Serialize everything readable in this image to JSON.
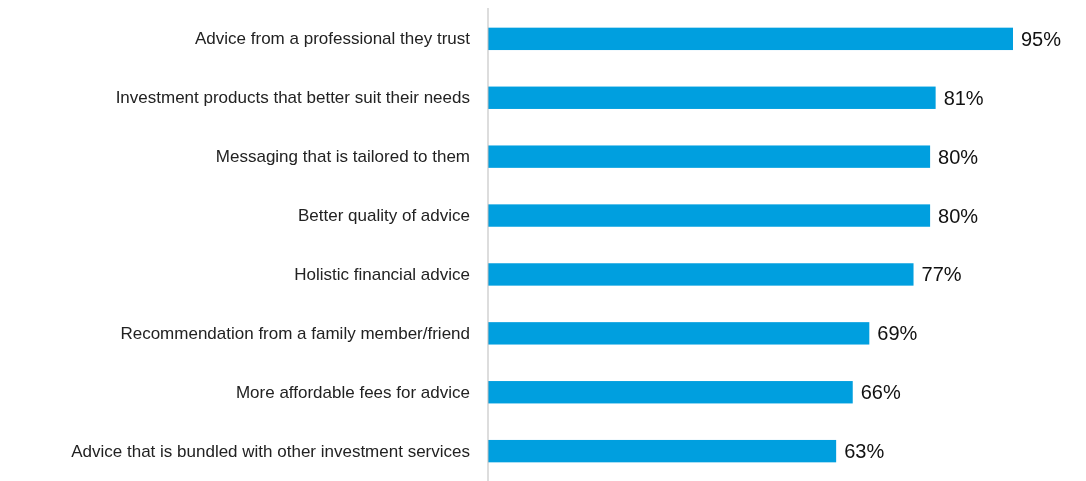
{
  "chart_data": {
    "type": "bar",
    "orientation": "horizontal",
    "categories": [
      "Advice from a professional they trust",
      "Investment products that better suit their needs",
      "Messaging that is tailored to them",
      "Better quality of advice",
      "Holistic financial advice",
      "Recommendation from a family member/friend",
      "More affordable fees for advice",
      "Advice that is bundled with other investment services"
    ],
    "values": [
      95,
      81,
      80,
      80,
      77,
      69,
      66,
      63
    ],
    "value_labels": [
      "95%",
      "81%",
      "80%",
      "80%",
      "77%",
      "69%",
      "66%",
      "63%"
    ],
    "color": "#009fdf"
  }
}
